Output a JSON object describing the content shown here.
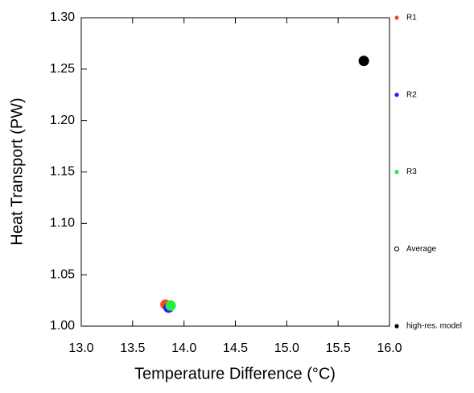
{
  "chart_data": {
    "type": "scatter",
    "xlabel": "Temperature Difference (°C)",
    "ylabel": "Heat Transport (PW)",
    "xlim": [
      13,
      16
    ],
    "ylim": [
      1.0,
      1.3
    ],
    "xticks": [
      {
        "value": 13,
        "label": "13.0"
      },
      {
        "value": 13.5,
        "label": "13.5"
      },
      {
        "value": 14,
        "label": "14.0"
      },
      {
        "value": 14.5,
        "label": "14.5"
      },
      {
        "value": 15,
        "label": "15.0"
      },
      {
        "value": 15.5,
        "label": "15.5"
      },
      {
        "value": 16,
        "label": "16.0"
      }
    ],
    "yticks": [
      {
        "value": 1.0,
        "label": "1.00"
      },
      {
        "value": 1.05,
        "label": "1.05"
      },
      {
        "value": 1.1,
        "label": "1.10"
      },
      {
        "value": 1.15,
        "label": "1.15"
      },
      {
        "value": 1.2,
        "label": "1.20"
      },
      {
        "value": 1.25,
        "label": "1.25"
      },
      {
        "value": 1.3,
        "label": "1.30"
      }
    ],
    "series": [
      {
        "name": "R1",
        "color": "#ff4a1c",
        "x": [
          13.82
        ],
        "values": [
          1.021
        ]
      },
      {
        "name": "R2",
        "color": "#2b1cff",
        "x": [
          13.85
        ],
        "values": [
          1.018
        ]
      },
      {
        "name": "R3",
        "color": "#22ee44",
        "x": [
          13.87
        ],
        "values": [
          1.02
        ]
      },
      {
        "name": "Average",
        "color": "#000000",
        "marker": "open",
        "x": [],
        "values": []
      },
      {
        "name": "high-res. model",
        "color": "#000000",
        "x": [
          15.75
        ],
        "values": [
          1.258
        ]
      }
    ]
  }
}
